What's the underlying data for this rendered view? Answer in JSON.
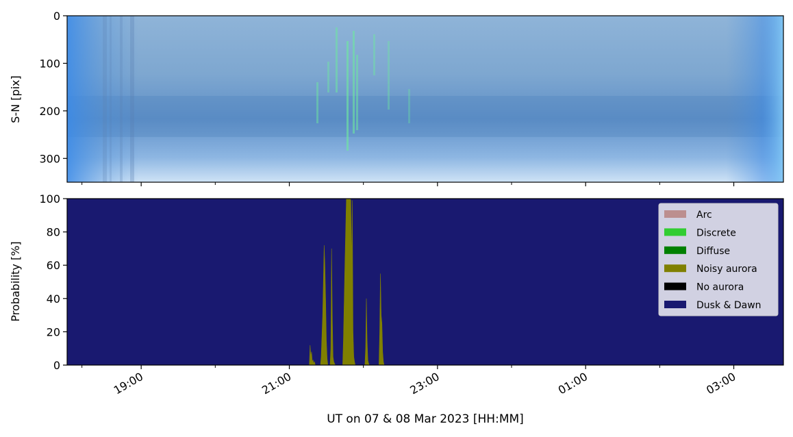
{
  "figure": {
    "xlabel": "UT on 07 & 08 Mar 2023 [HH:MM]"
  },
  "chart_data": [
    {
      "type": "heatmap",
      "description_role": "keogram",
      "ylabel": "S-N [pix]",
      "ylim": [
        350,
        0
      ],
      "yticks": [
        0,
        100,
        200,
        300
      ],
      "xlim_hours": [
        18.0,
        27.67
      ]
    },
    {
      "type": "area",
      "ylabel": "Probability [%]",
      "ylim": [
        0,
        100
      ],
      "yticks": [
        0,
        20,
        40,
        60,
        80,
        100
      ],
      "xlim_hours": [
        18.0,
        27.67
      ],
      "xtick_labels": [
        "19:00",
        "21:00",
        "23:00",
        "01:00",
        "03:00"
      ],
      "xtick_hours": [
        19,
        21,
        23,
        25,
        27
      ],
      "minor_tick_hours": [
        18.2,
        20,
        22,
        24,
        26
      ],
      "legend": {
        "placement": "top-right",
        "entries": [
          {
            "label": "Arc",
            "color": "#bc8f8f"
          },
          {
            "label": "Discrete",
            "color": "#32cd32"
          },
          {
            "label": "Diffuse",
            "color": "#008000"
          },
          {
            "label": "Noisy aurora",
            "color": "#808000"
          },
          {
            "label": "No aurora",
            "color": "#000000"
          },
          {
            "label": "Dusk & Dawn",
            "color": "#191970"
          }
        ]
      },
      "series": [
        {
          "name": "Noisy aurora",
          "color": "#808000",
          "x_hours": [
            21.27,
            21.28,
            21.29,
            21.3,
            21.31,
            21.32,
            21.33,
            21.34,
            21.35,
            21.42,
            21.43,
            21.45,
            21.47,
            21.48,
            21.49,
            21.5,
            21.51,
            21.52,
            21.55,
            21.56,
            21.57,
            21.58,
            21.59,
            21.6,
            21.61,
            21.62,
            21.72,
            21.73,
            21.75,
            21.77,
            21.78,
            21.79,
            21.8,
            21.81,
            21.82,
            21.83,
            21.84,
            21.85,
            21.86,
            21.87,
            21.88,
            21.89,
            22.02,
            22.03,
            22.04,
            22.05,
            22.06,
            22.07,
            22.08,
            22.21,
            22.22,
            22.23,
            22.24,
            22.25,
            22.26,
            22.27,
            22.28
          ],
          "values": [
            0,
            12,
            5,
            8,
            2,
            3,
            1,
            2,
            0,
            0,
            5,
            30,
            72,
            60,
            40,
            15,
            4,
            0,
            0,
            10,
            70,
            30,
            5,
            2,
            1,
            0,
            0,
            15,
            60,
            100,
            100,
            100,
            100,
            100,
            100,
            99,
            60,
            99,
            20,
            5,
            2,
            0,
            0,
            10,
            40,
            15,
            3,
            1,
            0,
            0,
            20,
            55,
            30,
            25,
            8,
            2,
            0
          ],
          "note_values_are_percent": true
        },
        {
          "name": "Dusk & Dawn",
          "color": "#191970",
          "fill": "remainder-to-100"
        }
      ]
    }
  ]
}
